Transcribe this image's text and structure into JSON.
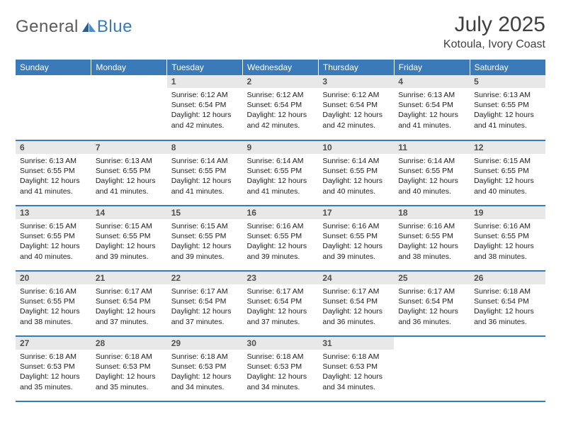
{
  "logo": {
    "general": "General",
    "blue": "Blue"
  },
  "title": "July 2025",
  "location": "Kotoula, Ivory Coast",
  "colors": {
    "header_bg": "#3a7ab8",
    "header_text": "#ffffff",
    "daynum_bg": "#e8e8e8",
    "daynum_text": "#505050",
    "body_text": "#202020",
    "border": "#3a7ab8",
    "logo_gray": "#5a5a5a",
    "logo_blue": "#3a7ab8"
  },
  "weekdays": [
    "Sunday",
    "Monday",
    "Tuesday",
    "Wednesday",
    "Thursday",
    "Friday",
    "Saturday"
  ],
  "weeks": [
    [
      null,
      null,
      {
        "n": "1",
        "sr": "6:12 AM",
        "ss": "6:54 PM",
        "dl": "12 hours and 42 minutes."
      },
      {
        "n": "2",
        "sr": "6:12 AM",
        "ss": "6:54 PM",
        "dl": "12 hours and 42 minutes."
      },
      {
        "n": "3",
        "sr": "6:12 AM",
        "ss": "6:54 PM",
        "dl": "12 hours and 42 minutes."
      },
      {
        "n": "4",
        "sr": "6:13 AM",
        "ss": "6:54 PM",
        "dl": "12 hours and 41 minutes."
      },
      {
        "n": "5",
        "sr": "6:13 AM",
        "ss": "6:55 PM",
        "dl": "12 hours and 41 minutes."
      }
    ],
    [
      {
        "n": "6",
        "sr": "6:13 AM",
        "ss": "6:55 PM",
        "dl": "12 hours and 41 minutes."
      },
      {
        "n": "7",
        "sr": "6:13 AM",
        "ss": "6:55 PM",
        "dl": "12 hours and 41 minutes."
      },
      {
        "n": "8",
        "sr": "6:14 AM",
        "ss": "6:55 PM",
        "dl": "12 hours and 41 minutes."
      },
      {
        "n": "9",
        "sr": "6:14 AM",
        "ss": "6:55 PM",
        "dl": "12 hours and 41 minutes."
      },
      {
        "n": "10",
        "sr": "6:14 AM",
        "ss": "6:55 PM",
        "dl": "12 hours and 40 minutes."
      },
      {
        "n": "11",
        "sr": "6:14 AM",
        "ss": "6:55 PM",
        "dl": "12 hours and 40 minutes."
      },
      {
        "n": "12",
        "sr": "6:15 AM",
        "ss": "6:55 PM",
        "dl": "12 hours and 40 minutes."
      }
    ],
    [
      {
        "n": "13",
        "sr": "6:15 AM",
        "ss": "6:55 PM",
        "dl": "12 hours and 40 minutes."
      },
      {
        "n": "14",
        "sr": "6:15 AM",
        "ss": "6:55 PM",
        "dl": "12 hours and 39 minutes."
      },
      {
        "n": "15",
        "sr": "6:15 AM",
        "ss": "6:55 PM",
        "dl": "12 hours and 39 minutes."
      },
      {
        "n": "16",
        "sr": "6:16 AM",
        "ss": "6:55 PM",
        "dl": "12 hours and 39 minutes."
      },
      {
        "n": "17",
        "sr": "6:16 AM",
        "ss": "6:55 PM",
        "dl": "12 hours and 39 minutes."
      },
      {
        "n": "18",
        "sr": "6:16 AM",
        "ss": "6:55 PM",
        "dl": "12 hours and 38 minutes."
      },
      {
        "n": "19",
        "sr": "6:16 AM",
        "ss": "6:55 PM",
        "dl": "12 hours and 38 minutes."
      }
    ],
    [
      {
        "n": "20",
        "sr": "6:16 AM",
        "ss": "6:55 PM",
        "dl": "12 hours and 38 minutes."
      },
      {
        "n": "21",
        "sr": "6:17 AM",
        "ss": "6:54 PM",
        "dl": "12 hours and 37 minutes."
      },
      {
        "n": "22",
        "sr": "6:17 AM",
        "ss": "6:54 PM",
        "dl": "12 hours and 37 minutes."
      },
      {
        "n": "23",
        "sr": "6:17 AM",
        "ss": "6:54 PM",
        "dl": "12 hours and 37 minutes."
      },
      {
        "n": "24",
        "sr": "6:17 AM",
        "ss": "6:54 PM",
        "dl": "12 hours and 36 minutes."
      },
      {
        "n": "25",
        "sr": "6:17 AM",
        "ss": "6:54 PM",
        "dl": "12 hours and 36 minutes."
      },
      {
        "n": "26",
        "sr": "6:18 AM",
        "ss": "6:54 PM",
        "dl": "12 hours and 36 minutes."
      }
    ],
    [
      {
        "n": "27",
        "sr": "6:18 AM",
        "ss": "6:53 PM",
        "dl": "12 hours and 35 minutes."
      },
      {
        "n": "28",
        "sr": "6:18 AM",
        "ss": "6:53 PM",
        "dl": "12 hours and 35 minutes."
      },
      {
        "n": "29",
        "sr": "6:18 AM",
        "ss": "6:53 PM",
        "dl": "12 hours and 34 minutes."
      },
      {
        "n": "30",
        "sr": "6:18 AM",
        "ss": "6:53 PM",
        "dl": "12 hours and 34 minutes."
      },
      {
        "n": "31",
        "sr": "6:18 AM",
        "ss": "6:53 PM",
        "dl": "12 hours and 34 minutes."
      },
      null,
      null
    ]
  ],
  "labels": {
    "sunrise": "Sunrise:",
    "sunset": "Sunset:",
    "daylight": "Daylight:"
  }
}
